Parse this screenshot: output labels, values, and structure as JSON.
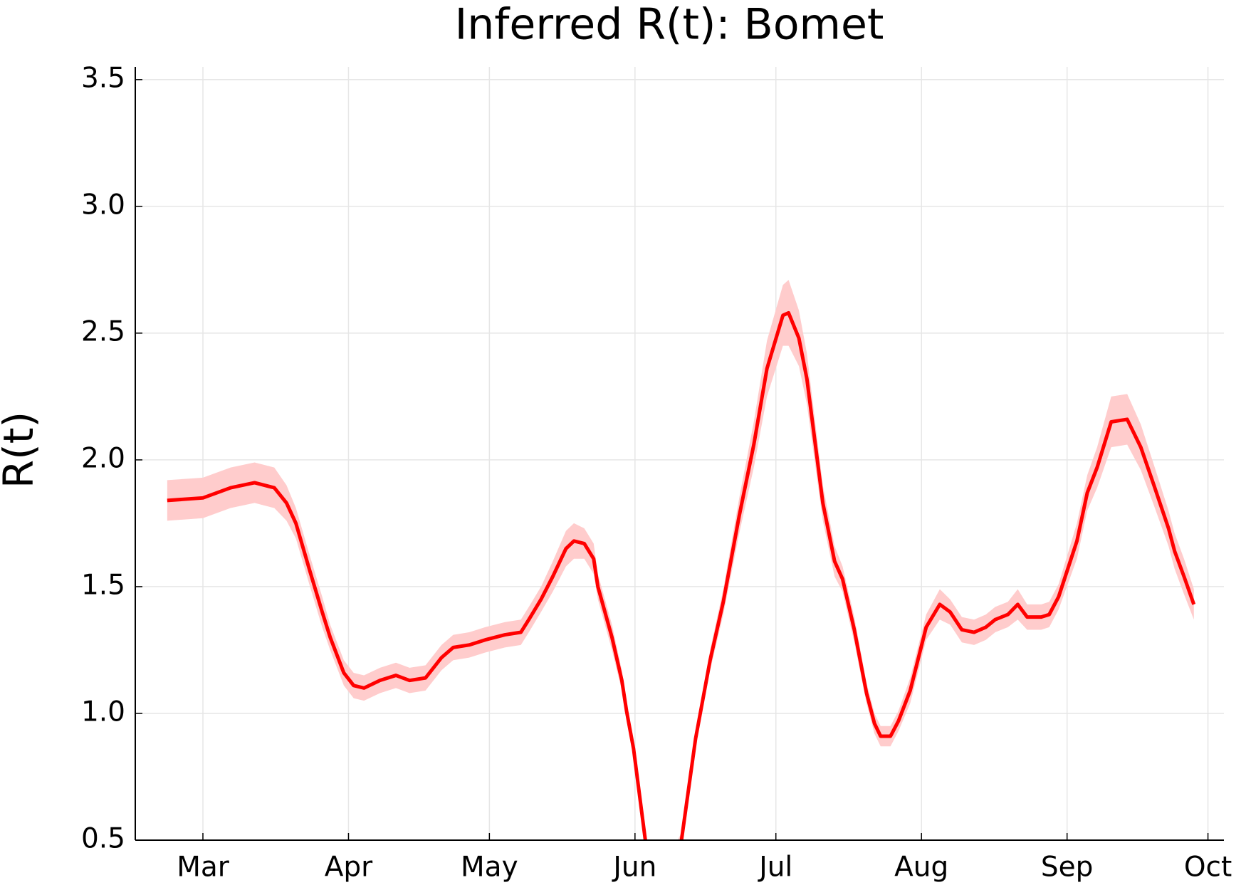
{
  "chart_data": {
    "type": "line",
    "title": "Inferred R(t): Bomet",
    "ylabel": "R(t)",
    "x": [
      -7.6,
      0,
      5.9,
      11,
      15.2,
      17.8,
      19.8,
      22.8,
      25.4,
      27.1,
      30,
      32.1,
      34.3,
      37.7,
      41.1,
      44,
      47.4,
      50.8,
      53.3,
      56.7,
      60.1,
      64.3,
      67.7,
      69.4,
      72,
      74.5,
      77.3,
      79,
      81.2,
      83.2,
      84.1,
      87.1,
      89.2,
      90.2,
      91.7,
      94.2,
      97,
      101.9,
      104.9,
      108,
      110.8,
      114.2,
      117.3,
      120.1,
      123.5,
      124.7,
      126.9,
      128.6,
      132,
      134.5,
      136.2,
      138.7,
      141.3,
      143,
      144.3,
      146.4,
      148.1,
      150.6,
      154,
      156.9,
      159.1,
      161.6,
      164.2,
      166.7,
      168.7,
      171.4,
      173.5,
      175.5,
      178.5,
      180.2,
      182.2,
      186.1,
      188.3,
      190.4,
      193.4,
      196.8,
      199.7,
      202.5,
      205.6,
      206.9,
      208.9,
      211
    ],
    "series": [
      {
        "color": "#ff0000",
        "band_color": "#ffcccc",
        "values": [
          1.84,
          1.85,
          1.89,
          1.91,
          1.89,
          1.83,
          1.75,
          1.56,
          1.4,
          1.3,
          1.16,
          1.11,
          1.1,
          1.13,
          1.15,
          1.13,
          1.14,
          1.22,
          1.26,
          1.27,
          1.29,
          1.31,
          1.32,
          1.37,
          1.45,
          1.54,
          1.65,
          1.68,
          1.67,
          1.61,
          1.5,
          1.3,
          1.13,
          1.01,
          0.86,
          0.5,
          0.32,
          0.5,
          0.9,
          1.21,
          1.44,
          1.78,
          2.06,
          2.36,
          2.57,
          2.58,
          2.48,
          2.32,
          1.83,
          1.6,
          1.53,
          1.33,
          1.08,
          0.96,
          0.91,
          0.91,
          0.97,
          1.09,
          1.34,
          1.43,
          1.4,
          1.33,
          1.32,
          1.34,
          1.37,
          1.39,
          1.43,
          1.38,
          1.38,
          1.39,
          1.46,
          1.68,
          1.87,
          1.97,
          2.15,
          2.16,
          2.05,
          1.9,
          1.73,
          1.64,
          1.54,
          1.43
        ],
        "lower": [
          1.76,
          1.77,
          1.81,
          1.83,
          1.81,
          1.76,
          1.69,
          1.5,
          1.34,
          1.25,
          1.11,
          1.06,
          1.05,
          1.08,
          1.1,
          1.08,
          1.09,
          1.17,
          1.21,
          1.22,
          1.24,
          1.26,
          1.27,
          1.32,
          1.4,
          1.48,
          1.58,
          1.61,
          1.61,
          1.55,
          1.45,
          1.25,
          1.09,
          0.97,
          0.83,
          0.47,
          0.29,
          0.47,
          0.87,
          1.17,
          1.39,
          1.71,
          1.97,
          2.25,
          2.45,
          2.45,
          2.37,
          2.22,
          1.76,
          1.54,
          1.48,
          1.28,
          1.04,
          0.92,
          0.87,
          0.87,
          0.93,
          1.04,
          1.29,
          1.37,
          1.35,
          1.28,
          1.27,
          1.29,
          1.32,
          1.34,
          1.37,
          1.33,
          1.33,
          1.34,
          1.41,
          1.61,
          1.8,
          1.89,
          2.05,
          2.06,
          1.96,
          1.82,
          1.66,
          1.57,
          1.47,
          1.37
        ],
        "upper": [
          1.92,
          1.93,
          1.97,
          1.99,
          1.97,
          1.9,
          1.81,
          1.62,
          1.46,
          1.35,
          1.21,
          1.16,
          1.15,
          1.18,
          1.2,
          1.18,
          1.19,
          1.27,
          1.31,
          1.32,
          1.34,
          1.36,
          1.37,
          1.42,
          1.5,
          1.6,
          1.72,
          1.75,
          1.73,
          1.67,
          1.55,
          1.35,
          1.17,
          1.05,
          0.89,
          0.53,
          0.35,
          0.53,
          0.93,
          1.25,
          1.49,
          1.85,
          2.15,
          2.47,
          2.69,
          2.71,
          2.59,
          2.42,
          1.9,
          1.66,
          1.58,
          1.38,
          1.12,
          1.0,
          0.95,
          0.95,
          1.01,
          1.14,
          1.39,
          1.49,
          1.45,
          1.38,
          1.37,
          1.39,
          1.42,
          1.44,
          1.49,
          1.43,
          1.43,
          1.44,
          1.51,
          1.75,
          1.94,
          2.05,
          2.25,
          2.26,
          2.14,
          1.98,
          1.8,
          1.71,
          1.61,
          1.49
        ]
      }
    ],
    "xlim": [
      -14.4,
      217.4
    ],
    "xticks": [
      {
        "value": 0,
        "label": "Mar"
      },
      {
        "value": 31,
        "label": "Apr"
      },
      {
        "value": 61,
        "label": "May"
      },
      {
        "value": 92,
        "label": "Jun"
      },
      {
        "value": 122,
        "label": "Jul"
      },
      {
        "value": 153,
        "label": "Aug"
      },
      {
        "value": 184,
        "label": "Sep"
      },
      {
        "value": 214,
        "label": "Oct"
      }
    ],
    "ylim": [
      0.5,
      3.55
    ],
    "yticks": [
      0.5,
      {
        "value": 1,
        "label": "1.0"
      },
      1.5,
      {
        "value": 2,
        "label": "2.0"
      },
      2.5,
      {
        "value": 3,
        "label": "3.0"
      },
      3.5
    ],
    "grid": true
  }
}
